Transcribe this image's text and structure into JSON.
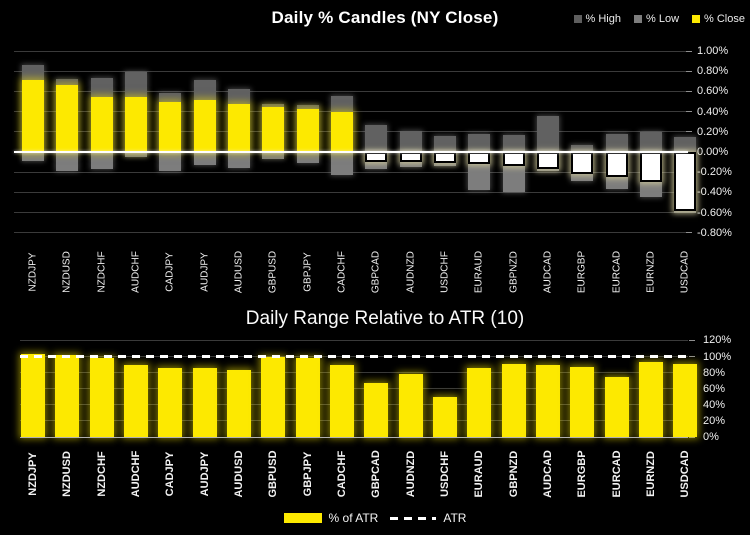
{
  "page": {
    "background": "#000000"
  },
  "colors": {
    "high": "#616161",
    "low": "#7d7d7d",
    "close_positive": "#fde900",
    "close_negative": "#ffffff",
    "atr_bar": "#fde900",
    "reference_line": "#ffffff",
    "legend_high": "#5e5e5e",
    "legend_low": "#7d7d7d"
  },
  "chart_data": [
    {
      "type": "bar",
      "subtype": "percent-candles",
      "title": "Daily % Candles (NY Close)",
      "categories": [
        "NZDJPY",
        "NZDUSD",
        "NZDCHF",
        "AUDCHF",
        "CADJPY",
        "AUDJPY",
        "AUDUSD",
        "GBPUSD",
        "GBPJPY",
        "CADCHF",
        "GBPCAD",
        "AUDNZD",
        "USDCHF",
        "EURAUD",
        "GBPNZD",
        "AUDCAD",
        "EURGBP",
        "EURCAD",
        "EURNZD",
        "USDCAD"
      ],
      "series": [
        {
          "name": "% High",
          "values": [
            0.86,
            0.72,
            0.73,
            0.79,
            0.58,
            0.71,
            0.62,
            0.48,
            0.47,
            0.55,
            0.27,
            0.21,
            0.16,
            0.18,
            0.17,
            0.36,
            0.07,
            0.18,
            0.2,
            0.15
          ]
        },
        {
          "name": "% Low",
          "values": [
            -0.09,
            -0.19,
            -0.17,
            -0.05,
            -0.19,
            -0.13,
            -0.16,
            -0.07,
            -0.11,
            -0.23,
            -0.17,
            -0.15,
            -0.14,
            -0.38,
            -0.4,
            -0.19,
            -0.29,
            -0.37,
            -0.45,
            -0.6
          ]
        },
        {
          "name": "% Close",
          "values": [
            0.71,
            0.66,
            0.54,
            0.54,
            0.5,
            0.51,
            0.48,
            0.45,
            0.43,
            0.4,
            -0.1,
            -0.1,
            -0.11,
            -0.12,
            -0.14,
            -0.17,
            -0.22,
            -0.25,
            -0.3,
            -0.58
          ]
        }
      ],
      "ylim": [
        -0.8,
        1.0
      ],
      "y_tick_step": 0.2,
      "y_tick_labels": [
        "1.00%",
        "0.80%",
        "0.60%",
        "0.40%",
        "0.20%",
        "0.00%",
        "-0.20%",
        "-0.40%",
        "-0.60%",
        "-0.80%"
      ],
      "grid": true,
      "zero_line": true,
      "legend_position": "top-right"
    },
    {
      "type": "bar",
      "title": "Daily Range Relative to ATR (10)",
      "categories": [
        "NZDJPY",
        "NZDUSD",
        "NZDCHF",
        "AUDCHF",
        "CADJPY",
        "AUDJPY",
        "AUDUSD",
        "GBPUSD",
        "GBPJPY",
        "CADCHF",
        "GBPCAD",
        "AUDNZD",
        "USDCHF",
        "EURAUD",
        "GBPNZD",
        "AUDCAD",
        "EURGBP",
        "EURCAD",
        "EURNZD",
        "USDCAD"
      ],
      "series": [
        {
          "name": "% of ATR",
          "values": [
            103,
            102,
            98,
            89,
            86,
            86,
            83,
            99,
            98,
            90,
            67,
            78,
            50,
            86,
            91,
            90,
            87,
            74,
            93,
            91
          ]
        }
      ],
      "reference_line": {
        "label": "ATR",
        "value": 100,
        "style": "dashed"
      },
      "ylim": [
        0,
        120
      ],
      "y_tick_step": 20,
      "y_tick_labels": [
        "120%",
        "100%",
        "80%",
        "60%",
        "40%",
        "20%",
        "0%"
      ],
      "grid": true,
      "legend_position": "bottom"
    }
  ]
}
